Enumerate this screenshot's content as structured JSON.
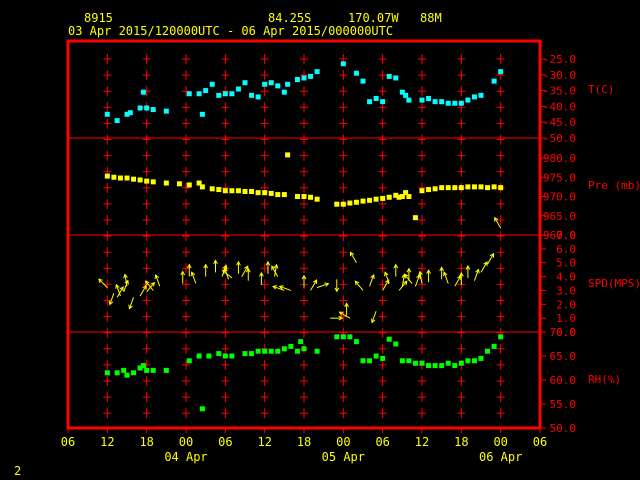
{
  "header": {
    "station": "8915",
    "latitude": "84.25S",
    "longitude": "170.07W",
    "elevation": "88M",
    "period": "03 Apr 2015/120000UTC - 06 Apr 2015/000000UTC"
  },
  "corner_label": "2",
  "colors": {
    "frame": "#ff0000",
    "grid": "#ff0000",
    "temperature": "#00ffff",
    "pressure": "#ffff00",
    "wind": "#ffff00",
    "humidity": "#00ff00",
    "axis_text": "#ff0000",
    "time_text": "#ffff00"
  },
  "chart_data": {
    "type": "scatter",
    "x_unit": "hours from 03 Apr 2015 06 UTC",
    "xlim": [
      0,
      72
    ],
    "x_ticks": [
      {
        "x": 0,
        "label": "06"
      },
      {
        "x": 6,
        "label": "12"
      },
      {
        "x": 12,
        "label": "18"
      },
      {
        "x": 18,
        "label": "00"
      },
      {
        "x": 24,
        "label": "06"
      },
      {
        "x": 30,
        "label": "12"
      },
      {
        "x": 36,
        "label": "18"
      },
      {
        "x": 42,
        "label": "00"
      },
      {
        "x": 48,
        "label": "06"
      },
      {
        "x": 54,
        "label": "12"
      },
      {
        "x": 60,
        "label": "18"
      },
      {
        "x": 66,
        "label": "00"
      },
      {
        "x": 72,
        "label": "06"
      }
    ],
    "date_labels": [
      {
        "x": 18,
        "label": "04 Apr"
      },
      {
        "x": 42,
        "label": "05 Apr"
      },
      {
        "x": 66,
        "label": "06 Apr"
      }
    ],
    "panels": [
      {
        "key": "temperature",
        "label": "T(C)",
        "ylim": [
          -50,
          -25
        ],
        "ticks": [
          "-25.0",
          "-30.0",
          "-35.0",
          "-40.0",
          "-45.0",
          "-50.0"
        ],
        "tick_values": [
          -25,
          -30,
          -35,
          -40,
          -45,
          -50
        ],
        "points": [
          [
            6,
            -42.5
          ],
          [
            7.5,
            -44.5
          ],
          [
            9,
            -42.5
          ],
          [
            9.5,
            -42.0
          ],
          [
            11,
            -40.5
          ],
          [
            11.5,
            -35.5
          ],
          [
            12,
            -40.5
          ],
          [
            13,
            -41.0
          ],
          [
            15,
            -41.5
          ],
          [
            18.5,
            -36.0
          ],
          [
            20,
            -36.0
          ],
          [
            20.5,
            -42.5
          ],
          [
            21,
            -35.0
          ],
          [
            22,
            -33.0
          ],
          [
            23,
            -36.5
          ],
          [
            24,
            -36.0
          ],
          [
            25,
            -36.0
          ],
          [
            26,
            -34.5
          ],
          [
            27,
            -32.5
          ],
          [
            28,
            -36.5
          ],
          [
            29,
            -37.0
          ],
          [
            30,
            -33.0
          ],
          [
            31,
            -32.5
          ],
          [
            32,
            -33.5
          ],
          [
            33,
            -35.5
          ],
          [
            33.5,
            -33.0
          ],
          [
            35,
            -31.5
          ],
          [
            36,
            -31.0
          ],
          [
            37,
            -30.5
          ],
          [
            38,
            -29.0
          ],
          [
            42,
            -26.5
          ],
          [
            44,
            -29.5
          ],
          [
            45,
            -32.0
          ],
          [
            46,
            -38.5
          ],
          [
            47,
            -37.5
          ],
          [
            48,
            -38.5
          ],
          [
            49,
            -30.5
          ],
          [
            50,
            -31.0
          ],
          [
            51,
            -35.5
          ],
          [
            51.5,
            -36.5
          ],
          [
            52,
            -38.0
          ],
          [
            54,
            -38.0
          ],
          [
            55,
            -37.5
          ],
          [
            56,
            -38.5
          ],
          [
            57,
            -38.5
          ],
          [
            58,
            -39.0
          ],
          [
            59,
            -39.0
          ],
          [
            60,
            -39.0
          ],
          [
            61,
            -38.0
          ],
          [
            62,
            -37.0
          ],
          [
            63,
            -36.5
          ],
          [
            65,
            -32.0
          ],
          [
            66,
            -29.0
          ]
        ]
      },
      {
        "key": "pressure",
        "label": "Pre (mb)",
        "ylim": [
          960,
          985
        ],
        "ticks": [
          "980.0",
          "975.0",
          "970.0",
          "965.0",
          "960.0"
        ],
        "tick_values": [
          980,
          975,
          970,
          965,
          960
        ],
        "points": [
          [
            6,
            975.3
          ],
          [
            7,
            975.0
          ],
          [
            8,
            974.8
          ],
          [
            9,
            974.8
          ],
          [
            10,
            974.5
          ],
          [
            11,
            974.3
          ],
          [
            12,
            974.0
          ],
          [
            13,
            973.8
          ],
          [
            15,
            973.5
          ],
          [
            17,
            973.3
          ],
          [
            18.5,
            973.0
          ],
          [
            20,
            973.5
          ],
          [
            20.5,
            972.5
          ],
          [
            22,
            972.0
          ],
          [
            23,
            971.8
          ],
          [
            24,
            971.5
          ],
          [
            25,
            971.5
          ],
          [
            26,
            971.5
          ],
          [
            27,
            971.3
          ],
          [
            28,
            971.3
          ],
          [
            29,
            971.0
          ],
          [
            30,
            971.0
          ],
          [
            31,
            970.8
          ],
          [
            32,
            970.5
          ],
          [
            33,
            970.5
          ],
          [
            33.5,
            980.8
          ],
          [
            35,
            970.0
          ],
          [
            36,
            970.0
          ],
          [
            37,
            969.8
          ],
          [
            38,
            969.3
          ],
          [
            41,
            968.0
          ],
          [
            42,
            968.0
          ],
          [
            43,
            968.3
          ],
          [
            44,
            968.5
          ],
          [
            45,
            968.8
          ],
          [
            46,
            969.0
          ],
          [
            47,
            969.3
          ],
          [
            48,
            969.5
          ],
          [
            49,
            969.8
          ],
          [
            50,
            970.3
          ],
          [
            50.5,
            969.8
          ],
          [
            51,
            970.0
          ],
          [
            51.5,
            971.0
          ],
          [
            52,
            970.0
          ],
          [
            53,
            964.5
          ],
          [
            54,
            971.5
          ],
          [
            55,
            971.8
          ],
          [
            56,
            972.0
          ],
          [
            57,
            972.3
          ],
          [
            58,
            972.3
          ],
          [
            59,
            972.3
          ],
          [
            60,
            972.3
          ],
          [
            61,
            972.5
          ],
          [
            62,
            972.5
          ],
          [
            63,
            972.5
          ],
          [
            64,
            972.3
          ],
          [
            65,
            972.5
          ],
          [
            66,
            972.3
          ]
        ]
      },
      {
        "key": "wind",
        "label": "SPD(MPS)",
        "ylim": [
          0,
          7
        ],
        "ticks": [
          "7.0",
          "6.0",
          "5.0",
          "4.0",
          "3.0",
          "2.0",
          "1.0",
          "0.0"
        ],
        "tick_values": [
          7,
          6,
          5,
          4,
          3,
          2,
          1,
          0
        ],
        "vectors": [
          [
            6,
            3.2,
            315
          ],
          [
            7,
            2.8,
            200
          ],
          [
            7.5,
            2.5,
            30
          ],
          [
            8,
            2.6,
            340
          ],
          [
            8.5,
            2.9,
            20
          ],
          [
            9,
            3.3,
            350
          ],
          [
            10,
            2.5,
            200
          ],
          [
            11,
            2.6,
            30
          ],
          [
            12,
            2.9,
            40
          ],
          [
            13,
            3.0,
            320
          ],
          [
            14,
            3.3,
            340
          ],
          [
            17.5,
            3.5,
            0
          ],
          [
            18.5,
            4.0,
            0
          ],
          [
            19.5,
            3.5,
            340
          ],
          [
            21,
            4.0,
            0
          ],
          [
            22.5,
            4.3,
            0
          ],
          [
            23.5,
            4.0,
            20
          ],
          [
            24.5,
            3.8,
            340
          ],
          [
            25,
            3.9,
            310
          ],
          [
            26,
            4.2,
            0
          ],
          [
            26.5,
            4.0,
            30
          ],
          [
            27.5,
            3.7,
            0
          ],
          [
            29.5,
            3.4,
            0
          ],
          [
            30.5,
            4.2,
            0
          ],
          [
            31.5,
            4.0,
            10
          ],
          [
            32,
            4.0,
            330
          ],
          [
            33,
            3.0,
            290
          ],
          [
            34,
            3.0,
            290
          ],
          [
            36,
            3.2,
            0
          ],
          [
            37,
            3.0,
            30
          ],
          [
            38,
            3.2,
            70
          ],
          [
            40,
            1.0,
            90
          ],
          [
            41,
            3.8,
            180
          ],
          [
            42.5,
            1.2,
            0
          ],
          [
            43,
            1.0,
            300
          ],
          [
            44,
            5.0,
            330
          ],
          [
            45,
            3.0,
            320
          ],
          [
            46,
            3.3,
            20
          ],
          [
            47,
            1.5,
            200
          ],
          [
            48,
            3.0,
            30
          ],
          [
            49,
            3.5,
            340
          ],
          [
            50,
            4.0,
            0
          ],
          [
            50.5,
            3.0,
            40
          ],
          [
            51,
            3.3,
            10
          ],
          [
            52,
            3.7,
            0
          ],
          [
            52.5,
            3.5,
            320
          ],
          [
            53,
            3.3,
            20
          ],
          [
            54,
            3.5,
            350
          ],
          [
            55,
            3.6,
            0
          ],
          [
            57,
            3.8,
            0
          ],
          [
            58,
            3.5,
            340
          ],
          [
            59,
            3.3,
            30
          ],
          [
            60,
            3.4,
            0
          ],
          [
            61,
            3.9,
            0
          ],
          [
            62,
            3.7,
            20
          ],
          [
            63,
            4.3,
            30
          ],
          [
            64,
            4.9,
            30
          ],
          [
            66,
            7.5,
            330
          ]
        ]
      },
      {
        "key": "humidity",
        "label": "RH(%)",
        "ylim": [
          50,
          75
        ],
        "ticks": [
          "70.0",
          "65.0",
          "60.0",
          "55.0",
          "50.0"
        ],
        "tick_values": [
          70,
          65,
          60,
          55,
          50
        ],
        "points": [
          [
            6,
            61.5
          ],
          [
            7.5,
            61.5
          ],
          [
            8.5,
            62.0
          ],
          [
            9,
            61.0
          ],
          [
            10,
            61.5
          ],
          [
            11,
            62.5
          ],
          [
            11.5,
            63.0
          ],
          [
            12,
            62.0
          ],
          [
            13,
            62.0
          ],
          [
            15,
            62.0
          ],
          [
            18.5,
            64.0
          ],
          [
            20,
            65.0
          ],
          [
            20.5,
            54.0
          ],
          [
            21.5,
            65.0
          ],
          [
            23,
            65.5
          ],
          [
            24,
            65.0
          ],
          [
            25,
            65.0
          ],
          [
            27,
            65.5
          ],
          [
            28,
            65.5
          ],
          [
            29,
            66.0
          ],
          [
            30,
            66.0
          ],
          [
            31,
            66.0
          ],
          [
            32,
            66.0
          ],
          [
            33,
            66.5
          ],
          [
            34,
            67.0
          ],
          [
            35,
            66.0
          ],
          [
            35.5,
            68.0
          ],
          [
            36,
            66.5
          ],
          [
            38,
            66.0
          ],
          [
            41,
            69.0
          ],
          [
            42,
            69.0
          ],
          [
            43,
            69.0
          ],
          [
            44,
            68.0
          ],
          [
            45,
            64.0
          ],
          [
            46,
            64.0
          ],
          [
            47,
            65.0
          ],
          [
            48,
            64.5
          ],
          [
            49,
            68.5
          ],
          [
            50,
            67.5
          ],
          [
            51,
            64.0
          ],
          [
            52,
            64.0
          ],
          [
            53,
            63.5
          ],
          [
            54,
            63.5
          ],
          [
            55,
            63.0
          ],
          [
            56,
            63.0
          ],
          [
            57,
            63.0
          ],
          [
            58,
            63.5
          ],
          [
            59,
            63.0
          ],
          [
            60,
            63.5
          ],
          [
            61,
            64.0
          ],
          [
            62,
            64.0
          ],
          [
            63,
            64.5
          ],
          [
            64,
            66.0
          ],
          [
            65,
            67.0
          ],
          [
            66,
            69.0
          ]
        ]
      }
    ]
  }
}
